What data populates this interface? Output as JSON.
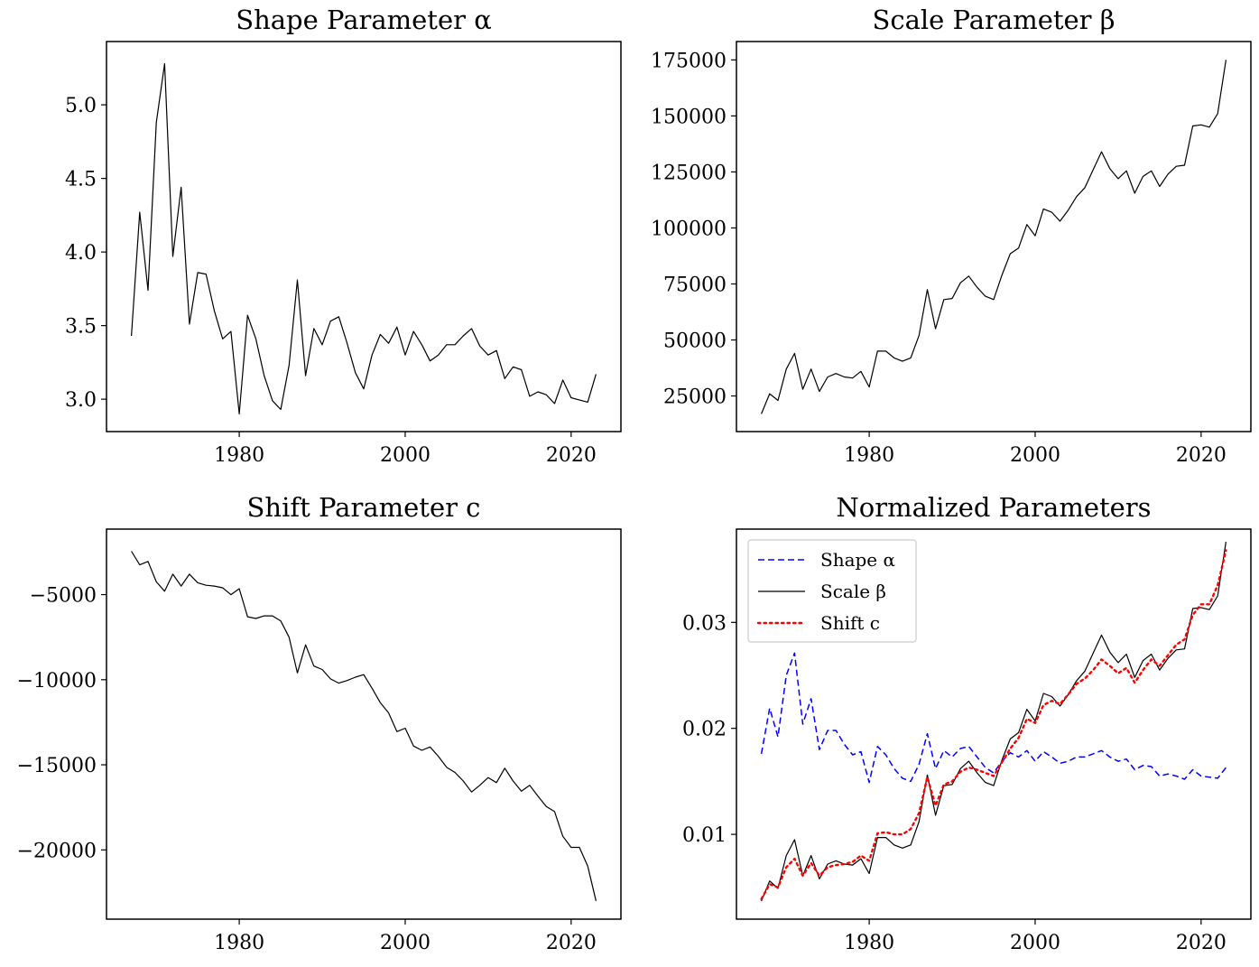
{
  "chart_data": [
    {
      "type": "line",
      "title": "Shape Parameter α",
      "xticks": [
        1980,
        2000,
        2020
      ],
      "yticks": [
        3.0,
        3.5,
        4.0,
        4.5,
        5.0
      ],
      "ytick_labels": [
        "3.0",
        "3.5",
        "4.0",
        "4.5",
        "5.0"
      ],
      "xlim": [
        1964.0,
        2026.0
      ],
      "ylim": [
        2.78,
        5.43
      ],
      "series": [
        {
          "color": "#000000",
          "dash": "solid",
          "x": [
            1967,
            1968,
            1969,
            1970,
            1971,
            1972,
            1973,
            1974,
            1975,
            1976,
            1977,
            1978,
            1979,
            1980,
            1981,
            1982,
            1983,
            1984,
            1985,
            1986,
            1987,
            1988,
            1989,
            1990,
            1991,
            1992,
            1993,
            1994,
            1995,
            1996,
            1997,
            1998,
            1999,
            2000,
            2001,
            2002,
            2003,
            2004,
            2005,
            2006,
            2007,
            2008,
            2009,
            2010,
            2011,
            2012,
            2013,
            2014,
            2015,
            2016,
            2017,
            2018,
            2019,
            2020,
            2022,
            2023
          ],
          "y": [
            3.43,
            4.27,
            3.74,
            4.88,
            5.28,
            3.97,
            4.44,
            3.51,
            3.86,
            3.85,
            3.6,
            3.41,
            3.46,
            2.9,
            3.57,
            3.41,
            3.16,
            2.99,
            2.93,
            3.23,
            3.81,
            3.16,
            3.48,
            3.37,
            3.53,
            3.56,
            3.38,
            3.18,
            3.07,
            3.3,
            3.44,
            3.38,
            3.49,
            3.3,
            3.46,
            3.37,
            3.26,
            3.3,
            3.37,
            3.37,
            3.43,
            3.48,
            3.36,
            3.3,
            3.33,
            3.14,
            3.22,
            3.2,
            3.02,
            3.05,
            3.03,
            2.97,
            3.13,
            3.01,
            2.98,
            3.17
          ]
        }
      ]
    },
    {
      "type": "line",
      "title": "Scale Parameter β",
      "xticks": [
        1980,
        2000,
        2020
      ],
      "yticks": [
        25000,
        50000,
        75000,
        100000,
        125000,
        150000,
        175000
      ],
      "ytick_labels": [
        "25000",
        "50000",
        "75000",
        "100000",
        "125000",
        "150000",
        "175000"
      ],
      "xlim": [
        1964.0,
        2026.0
      ],
      "ylim": [
        9100,
        183200
      ],
      "series": [
        {
          "color": "#000000",
          "dash": "solid",
          "x": [
            1967,
            1968,
            1969,
            1970,
            1971,
            1972,
            1973,
            1974,
            1975,
            1976,
            1977,
            1978,
            1979,
            1980,
            1981,
            1982,
            1983,
            1984,
            1985,
            1986,
            1987,
            1988,
            1989,
            1990,
            1991,
            1992,
            1993,
            1994,
            1995,
            1996,
            1997,
            1998,
            1999,
            2000,
            2001,
            2002,
            2003,
            2004,
            2005,
            2006,
            2007,
            2008,
            2009,
            2010,
            2011,
            2012,
            2013,
            2014,
            2015,
            2016,
            2017,
            2018,
            2019,
            2020,
            2021,
            2022,
            2023
          ],
          "y": [
            17000,
            26000,
            23000,
            37000,
            44000,
            28000,
            37000,
            27000,
            33500,
            35000,
            33500,
            33000,
            36000,
            29000,
            45000,
            45000,
            42000,
            40500,
            42000,
            52000,
            72500,
            55000,
            68000,
            68500,
            75500,
            78500,
            73500,
            69500,
            68000,
            79000,
            88500,
            91000,
            101500,
            96500,
            108500,
            107000,
            103000,
            108000,
            114000,
            118000,
            126000,
            134000,
            126500,
            122000,
            125500,
            115500,
            123000,
            125500,
            118500,
            124000,
            127500,
            128000,
            145500,
            146000,
            145000,
            151000,
            175000
          ]
        }
      ]
    },
    {
      "type": "line",
      "title": "Shift Parameter c",
      "xticks": [
        1980,
        2000,
        2020
      ],
      "yticks": [
        -5000,
        -10000,
        -15000,
        -20000
      ],
      "ytick_labels": [
        "−5000",
        "−10000",
        "−15000",
        "−20000"
      ],
      "xlim": [
        1964.0,
        2026.0
      ],
      "ylim": [
        -24070,
        -1150
      ],
      "series": [
        {
          "color": "#000000",
          "dash": "solid",
          "x": [
            1967,
            1968,
            1969,
            1970,
            1971,
            1972,
            1973,
            1974,
            1975,
            1976,
            1977,
            1978,
            1979,
            1980,
            1981,
            1982,
            1983,
            1984,
            1985,
            1986,
            1987,
            1988,
            1989,
            1990,
            1991,
            1992,
            1993,
            1994,
            1995,
            1996,
            1997,
            1998,
            1999,
            2000,
            2001,
            2002,
            2003,
            2004,
            2005,
            2006,
            2007,
            2008,
            2009,
            2010,
            2011,
            2012,
            2013,
            2014,
            2015,
            2016,
            2017,
            2018,
            2019,
            2020,
            2021,
            2022,
            2023
          ],
          "y": [
            -2450,
            -3250,
            -3050,
            -4250,
            -4800,
            -3800,
            -4500,
            -3800,
            -4300,
            -4450,
            -4500,
            -4600,
            -5000,
            -4650,
            -6300,
            -6400,
            -6250,
            -6250,
            -6550,
            -7500,
            -9600,
            -7950,
            -9200,
            -9400,
            -9950,
            -10200,
            -10050,
            -9850,
            -9700,
            -10500,
            -11350,
            -11950,
            -13050,
            -12850,
            -13900,
            -14150,
            -13950,
            -14500,
            -15150,
            -15450,
            -15950,
            -16600,
            -16200,
            -15750,
            -16050,
            -15200,
            -15950,
            -16550,
            -16200,
            -16850,
            -17450,
            -17750,
            -19200,
            -19850,
            -19850,
            -20950,
            -23000
          ]
        }
      ]
    },
    {
      "type": "line",
      "title": "Normalized Parameters",
      "xticks": [
        1980,
        2000,
        2020
      ],
      "yticks": [
        0.01,
        0.02,
        0.03
      ],
      "ytick_labels": [
        "0.01",
        "0.02",
        "0.03"
      ],
      "xlim": [
        1964.0,
        2026.0
      ],
      "ylim": [
        0.002,
        0.0388
      ],
      "legend": {
        "placement": "top-left"
      },
      "series": [
        {
          "name": "Shape α",
          "color": "#0000ff",
          "dash": "dashed",
          "x": [
            1967,
            1968,
            1969,
            1970,
            1971,
            1972,
            1973,
            1974,
            1975,
            1976,
            1977,
            1978,
            1979,
            1980,
            1981,
            1982,
            1983,
            1984,
            1985,
            1986,
            1987,
            1988,
            1989,
            1990,
            1991,
            1992,
            1993,
            1994,
            1995,
            1996,
            1997,
            1998,
            1999,
            2000,
            2001,
            2002,
            2003,
            2004,
            2005,
            2006,
            2007,
            2008,
            2009,
            2010,
            2011,
            2012,
            2013,
            2014,
            2015,
            2016,
            2017,
            2018,
            2019,
            2020,
            2022,
            2023
          ],
          "y": [
            0.0176,
            0.0219,
            0.0192,
            0.025,
            0.0271,
            0.0204,
            0.0228,
            0.018,
            0.0198,
            0.0198,
            0.0185,
            0.0175,
            0.0178,
            0.0149,
            0.0183,
            0.0175,
            0.0162,
            0.0153,
            0.015,
            0.0166,
            0.0195,
            0.0162,
            0.0179,
            0.0173,
            0.0181,
            0.0183,
            0.0173,
            0.0163,
            0.0158,
            0.0169,
            0.0177,
            0.0173,
            0.0179,
            0.0169,
            0.0178,
            0.0173,
            0.0167,
            0.0169,
            0.0173,
            0.0173,
            0.0176,
            0.0179,
            0.0173,
            0.0169,
            0.0171,
            0.0161,
            0.0165,
            0.0164,
            0.0155,
            0.0157,
            0.0155,
            0.0152,
            0.0161,
            0.0155,
            0.0153,
            0.0163
          ]
        },
        {
          "name": "Scale β",
          "color": "#000000",
          "dash": "solid",
          "x": [
            1967,
            1968,
            1969,
            1970,
            1971,
            1972,
            1973,
            1974,
            1975,
            1976,
            1977,
            1978,
            1979,
            1980,
            1981,
            1982,
            1983,
            1984,
            1985,
            1986,
            1987,
            1988,
            1989,
            1990,
            1991,
            1992,
            1993,
            1994,
            1995,
            1996,
            1997,
            1998,
            1999,
            2000,
            2001,
            2002,
            2003,
            2004,
            2005,
            2006,
            2007,
            2008,
            2009,
            2010,
            2011,
            2012,
            2013,
            2014,
            2015,
            2016,
            2017,
            2018,
            2019,
            2020,
            2021,
            2022,
            2023
          ],
          "y": [
            0.0037,
            0.0056,
            0.0049,
            0.008,
            0.0095,
            0.0061,
            0.008,
            0.0058,
            0.0072,
            0.0075,
            0.0072,
            0.0071,
            0.0077,
            0.0063,
            0.0097,
            0.0097,
            0.009,
            0.0087,
            0.009,
            0.0112,
            0.0156,
            0.0118,
            0.0146,
            0.0147,
            0.0162,
            0.0169,
            0.0158,
            0.0149,
            0.0146,
            0.017,
            0.019,
            0.0196,
            0.0218,
            0.0207,
            0.0233,
            0.023,
            0.0221,
            0.0232,
            0.0245,
            0.0254,
            0.0271,
            0.0288,
            0.0272,
            0.0262,
            0.027,
            0.0248,
            0.0264,
            0.027,
            0.0255,
            0.0266,
            0.0274,
            0.0275,
            0.0313,
            0.0314,
            0.0312,
            0.0325,
            0.0376
          ]
        },
        {
          "name": "Shift c",
          "color": "#ff0000",
          "dash": "dotted",
          "x": [
            1967,
            1968,
            1969,
            1970,
            1971,
            1972,
            1973,
            1974,
            1975,
            1976,
            1977,
            1978,
            1979,
            1980,
            1981,
            1982,
            1983,
            1984,
            1985,
            1986,
            1987,
            1988,
            1989,
            1990,
            1991,
            1992,
            1993,
            1994,
            1995,
            1996,
            1997,
            1998,
            1999,
            2000,
            2001,
            2002,
            2003,
            2004,
            2005,
            2006,
            2007,
            2008,
            2009,
            2010,
            2011,
            2012,
            2013,
            2014,
            2015,
            2016,
            2017,
            2018,
            2019,
            2020,
            2021,
            2022,
            2023
          ],
          "y": [
            0.0039,
            0.0053,
            0.005,
            0.0069,
            0.0077,
            0.0061,
            0.0073,
            0.0061,
            0.0069,
            0.0071,
            0.0072,
            0.0074,
            0.008,
            0.0075,
            0.0101,
            0.0102,
            0.01,
            0.01,
            0.0105,
            0.012,
            0.0154,
            0.0127,
            0.0147,
            0.015,
            0.0159,
            0.0163,
            0.0161,
            0.0158,
            0.0155,
            0.0168,
            0.0181,
            0.0191,
            0.0209,
            0.0205,
            0.0222,
            0.0226,
            0.0223,
            0.0232,
            0.0242,
            0.0247,
            0.0255,
            0.0265,
            0.0259,
            0.0252,
            0.0257,
            0.0243,
            0.0255,
            0.0265,
            0.0259,
            0.0269,
            0.0279,
            0.0284,
            0.0307,
            0.0317,
            0.0317,
            0.0335,
            0.0368
          ]
        }
      ]
    }
  ]
}
